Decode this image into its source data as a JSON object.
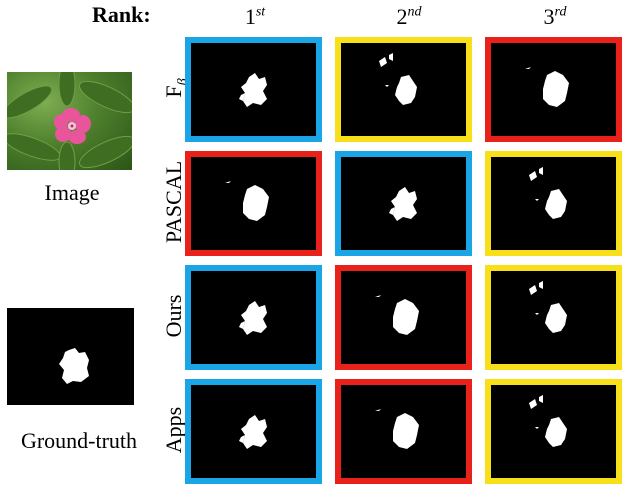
{
  "header": {
    "rank_label": "Rank:",
    "columns": [
      {
        "base": "1",
        "sup": "st"
      },
      {
        "base": "2",
        "sup": "nd"
      },
      {
        "base": "3",
        "sup": "rd"
      }
    ]
  },
  "left": {
    "image_label": "Image",
    "gt_label": "Ground-truth"
  },
  "colors": {
    "blue": "#1aa6e6",
    "yellow": "#f7e01a",
    "red": "#e8211a"
  },
  "rows": [
    {
      "label": "F",
      "sub": "β",
      "cells": [
        {
          "color": "blue",
          "mask": "a"
        },
        {
          "color": "yellow",
          "mask": "c"
        },
        {
          "color": "red",
          "mask": "b"
        }
      ]
    },
    {
      "label": "PASCAL",
      "sub": "",
      "cells": [
        {
          "color": "red",
          "mask": "b"
        },
        {
          "color": "blue",
          "mask": "a"
        },
        {
          "color": "yellow",
          "mask": "c"
        }
      ]
    },
    {
      "label": "Ours",
      "sub": "",
      "cells": [
        {
          "color": "blue",
          "mask": "a"
        },
        {
          "color": "red",
          "mask": "b"
        },
        {
          "color": "yellow",
          "mask": "c"
        }
      ]
    },
    {
      "label": "Apps",
      "sub": "",
      "cells": [
        {
          "color": "blue",
          "mask": "a"
        },
        {
          "color": "red",
          "mask": "b"
        },
        {
          "color": "yellow",
          "mask": "c"
        }
      ]
    }
  ]
}
